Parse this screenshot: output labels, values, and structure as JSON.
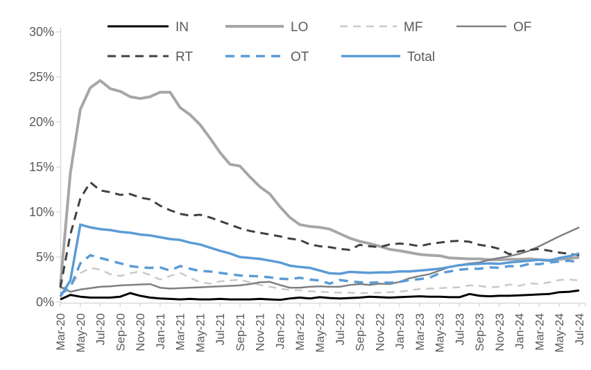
{
  "page": {
    "background": "#ffffff"
  },
  "chart_data": {
    "type": "line",
    "title": "",
    "xlabel": "",
    "ylabel": "",
    "grid": false,
    "legend_position": "top",
    "axis_color": "#D9D9D9",
    "tick_label_color": "#595959",
    "x_label_step": 2,
    "x": [
      "Mar-20",
      "Apr-20",
      "May-20",
      "Jun-20",
      "Jul-20",
      "Aug-20",
      "Sep-20",
      "Oct-20",
      "Nov-20",
      "Dec-20",
      "Jan-21",
      "Feb-21",
      "Mar-21",
      "Apr-21",
      "May-21",
      "Jun-21",
      "Jul-21",
      "Aug-21",
      "Sep-21",
      "Oct-21",
      "Nov-21",
      "Dec-21",
      "Jan-22",
      "Feb-22",
      "Mar-22",
      "Apr-22",
      "May-22",
      "Jun-22",
      "Jul-22",
      "Aug-22",
      "Sep-22",
      "Oct-22",
      "Nov-22",
      "Dec-22",
      "Jan-23",
      "Feb-23",
      "Mar-23",
      "Apr-23",
      "May-23",
      "Jun-23",
      "Jul-23",
      "Aug-23",
      "Sep-23",
      "Oct-23",
      "Nov-23",
      "Dec-23",
      "Jan-24",
      "Feb-24",
      "Mar-24",
      "Apr-24",
      "May-24",
      "Jun-24",
      "Jul-24"
    ],
    "y_axis": {
      "min": 0,
      "max": 30,
      "step": 5,
      "ticks": [
        "0%",
        "5%",
        "10%",
        "15%",
        "20%",
        "25%",
        "30%"
      ]
    },
    "series": [
      {
        "name": "IN",
        "color": "#000000",
        "line_style": "solid",
        "values": [
          0.3,
          0.8,
          0.6,
          0.5,
          0.5,
          0.5,
          0.6,
          1.0,
          0.7,
          0.5,
          0.4,
          0.35,
          0.3,
          0.35,
          0.3,
          0.3,
          0.35,
          0.3,
          0.3,
          0.3,
          0.35,
          0.3,
          0.25,
          0.4,
          0.5,
          0.4,
          0.55,
          0.45,
          0.4,
          0.45,
          0.5,
          0.6,
          0.55,
          0.5,
          0.55,
          0.6,
          0.65,
          0.6,
          0.6,
          0.55,
          0.55,
          0.9,
          0.7,
          0.65,
          0.7,
          0.7,
          0.75,
          0.8,
          0.85,
          0.9,
          1.1,
          1.15,
          1.3
        ]
      },
      {
        "name": "LO",
        "color": "#A6A6A6",
        "line_style": "solid",
        "values": [
          1.8,
          14.3,
          21.4,
          23.8,
          24.6,
          23.7,
          23.4,
          22.8,
          22.6,
          22.8,
          23.3,
          23.3,
          21.6,
          20.8,
          19.7,
          18.2,
          16.6,
          15.3,
          15.1,
          13.9,
          12.8,
          12.0,
          10.6,
          9.4,
          8.6,
          8.4,
          8.3,
          8.1,
          7.6,
          7.1,
          6.75,
          6.5,
          6.2,
          5.85,
          5.7,
          5.5,
          5.3,
          5.2,
          5.15,
          4.9,
          4.85,
          4.8,
          4.8,
          4.7,
          4.7,
          4.75,
          4.75,
          4.8,
          4.7,
          4.65,
          4.75,
          4.85,
          4.95
        ]
      },
      {
        "name": "MF",
        "color": "#C9C9C9",
        "line_style": "dashed",
        "values": [
          1.5,
          1.8,
          3.2,
          3.8,
          3.6,
          3.1,
          2.9,
          3.2,
          3.4,
          3.0,
          2.5,
          2.9,
          3.25,
          2.7,
          2.2,
          2.05,
          2.3,
          2.4,
          2.5,
          2.2,
          1.9,
          1.7,
          1.5,
          1.35,
          1.3,
          1.2,
          1.15,
          1.1,
          1.05,
          1.05,
          1.0,
          1.0,
          1.05,
          1.1,
          1.15,
          1.3,
          1.45,
          1.5,
          1.55,
          1.6,
          1.65,
          1.85,
          1.8,
          1.65,
          1.7,
          1.95,
          1.8,
          2.1,
          2.0,
          2.2,
          2.45,
          2.5,
          2.4
        ]
      },
      {
        "name": "OF",
        "color": "#7F7F7F",
        "line_style": "solid",
        "values": [
          1.7,
          1.15,
          1.4,
          1.55,
          1.7,
          1.75,
          1.85,
          1.9,
          1.95,
          2.0,
          1.6,
          1.5,
          1.55,
          1.6,
          1.65,
          1.7,
          1.75,
          1.8,
          1.85,
          2.0,
          2.2,
          2.25,
          1.9,
          1.6,
          1.6,
          1.7,
          1.75,
          1.7,
          1.7,
          1.9,
          2.0,
          1.9,
          2.05,
          2.0,
          2.25,
          2.65,
          2.9,
          3.1,
          3.5,
          3.9,
          4.1,
          4.3,
          4.4,
          4.7,
          4.9,
          5.1,
          5.35,
          5.7,
          6.2,
          6.75,
          7.3,
          7.8,
          8.3
        ]
      },
      {
        "name": "RT",
        "color": "#404040",
        "line_style": "dashed",
        "values": [
          1.6,
          7.5,
          11.5,
          13.3,
          12.4,
          12.2,
          11.9,
          12.0,
          11.6,
          11.4,
          10.7,
          10.2,
          9.8,
          9.6,
          9.7,
          9.4,
          9.0,
          8.6,
          8.2,
          7.9,
          7.7,
          7.5,
          7.3,
          7.05,
          6.9,
          6.4,
          6.2,
          6.1,
          5.9,
          5.8,
          6.35,
          6.2,
          6.1,
          6.4,
          6.5,
          6.4,
          6.2,
          6.45,
          6.6,
          6.75,
          6.8,
          6.7,
          6.35,
          6.2,
          5.9,
          5.3,
          5.65,
          5.8,
          5.9,
          5.7,
          5.5,
          5.35,
          5.2
        ]
      },
      {
        "name": "OT",
        "color": "#5B9BD5",
        "line_style": "dashed",
        "values": [
          0.9,
          1.6,
          4.3,
          5.2,
          4.9,
          4.6,
          4.3,
          4.0,
          3.85,
          3.8,
          3.85,
          3.5,
          4.0,
          3.7,
          3.45,
          3.4,
          3.25,
          3.1,
          2.95,
          2.9,
          2.85,
          2.75,
          2.6,
          2.55,
          2.7,
          2.5,
          2.4,
          2.05,
          2.45,
          2.3,
          2.2,
          2.15,
          2.2,
          2.15,
          2.25,
          2.45,
          2.55,
          2.7,
          3.2,
          3.4,
          3.6,
          3.7,
          3.7,
          3.85,
          3.8,
          4.0,
          3.95,
          4.25,
          4.2,
          4.4,
          4.5,
          4.6,
          4.4
        ]
      },
      {
        "name": "Total",
        "color": "#5B9BD5",
        "line_style": "solid",
        "values": [
          0.6,
          2.4,
          8.6,
          8.3,
          8.1,
          8.0,
          7.8,
          7.7,
          7.5,
          7.4,
          7.2,
          7.0,
          6.9,
          6.6,
          6.4,
          6.05,
          5.7,
          5.4,
          5.0,
          4.9,
          4.8,
          4.6,
          4.4,
          4.05,
          3.9,
          3.8,
          3.5,
          3.2,
          3.15,
          3.35,
          3.3,
          3.25,
          3.3,
          3.3,
          3.4,
          3.4,
          3.5,
          3.6,
          3.7,
          3.9,
          4.1,
          4.2,
          4.25,
          4.3,
          4.25,
          4.4,
          4.5,
          4.6,
          4.7,
          4.6,
          4.9,
          5.1,
          5.4
        ]
      }
    ]
  }
}
